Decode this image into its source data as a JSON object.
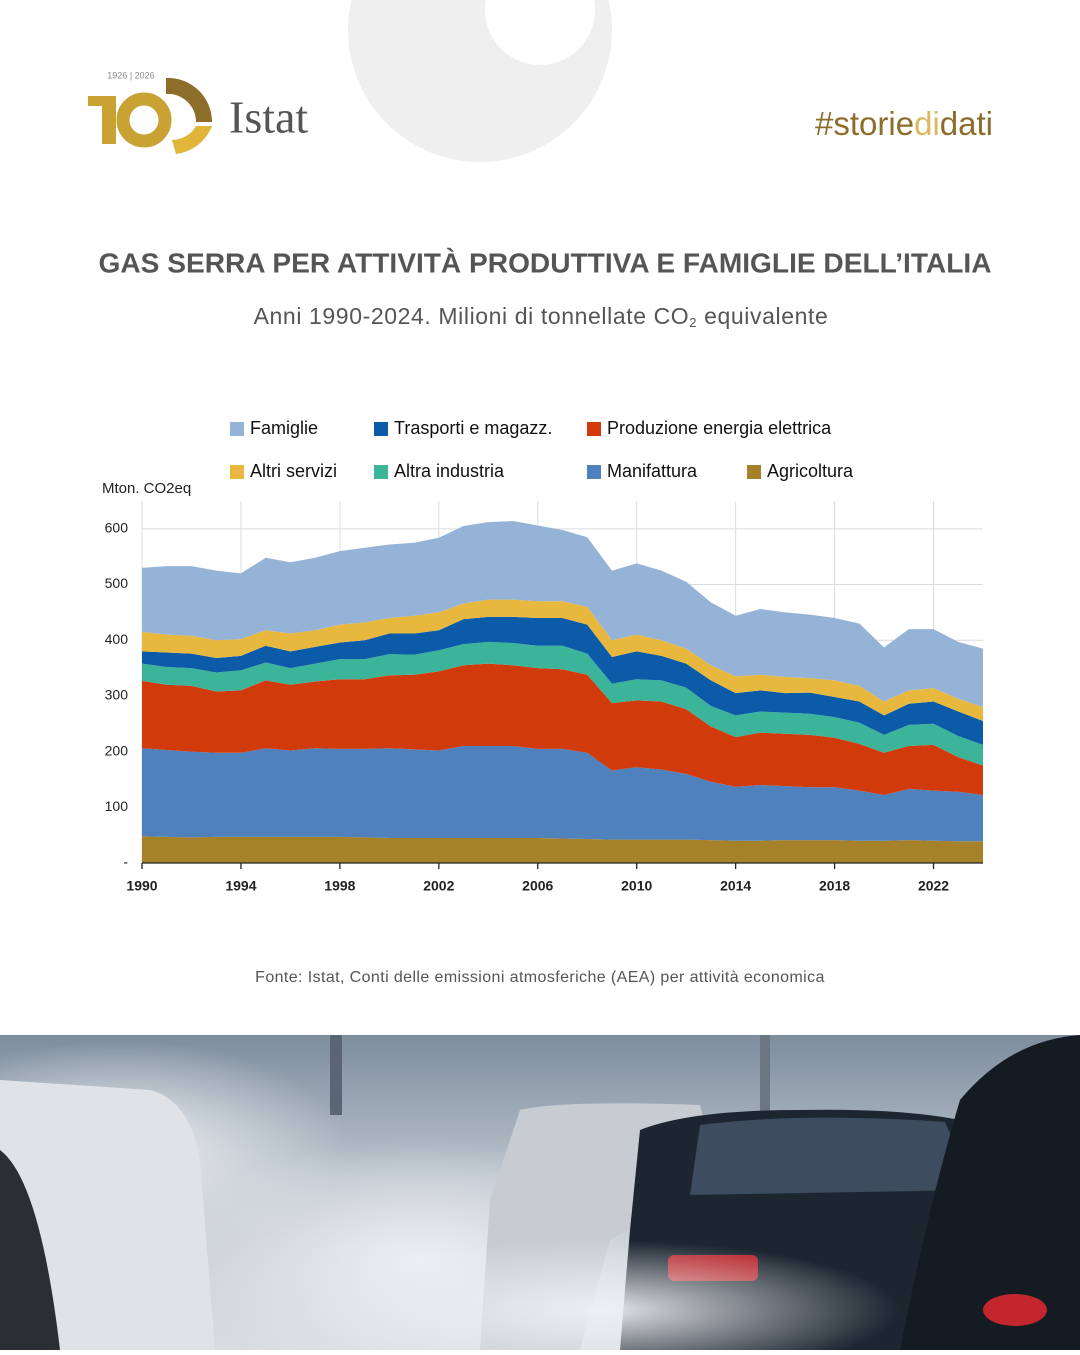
{
  "header": {
    "logo_years": "1926 | 2026",
    "logo_name": "Istat",
    "hashtag_parts": [
      "#storie",
      "di",
      "dati"
    ]
  },
  "chart_data": {
    "type": "stacked-area",
    "title": "GAS SERRA PER ATTIVITÀ PRODUTTIVA E FAMIGLIE DELL’ITALIA",
    "subtitle_parts": [
      "Anni 1990-2024. Milioni di tonnellate CO",
      "2",
      " equivalente"
    ],
    "y_axis_label": "Mton. CO2eq",
    "x": [
      1990,
      1991,
      1992,
      1993,
      1994,
      1995,
      1996,
      1997,
      1998,
      1999,
      2000,
      2001,
      2002,
      2003,
      2004,
      2005,
      2006,
      2007,
      2008,
      2009,
      2010,
      2011,
      2012,
      2013,
      2014,
      2015,
      2016,
      2017,
      2018,
      2019,
      2020,
      2021,
      2022,
      2023,
      2024
    ],
    "xlim": [
      1990,
      2024
    ],
    "xticks": [
      1990,
      1994,
      1998,
      2002,
      2006,
      2010,
      2014,
      2018,
      2022
    ],
    "ylim": [
      0,
      650
    ],
    "yticks": [
      {
        "value": 0,
        "label": "-"
      },
      100,
      200,
      300,
      400,
      500,
      600
    ],
    "grid": true,
    "series": [
      {
        "name": "Famiglie",
        "color": "#95b3d7",
        "values": [
          115,
          123,
          125,
          125,
          118,
          130,
          128,
          130,
          132,
          134,
          132,
          131,
          134,
          139,
          139,
          141,
          136,
          128,
          125,
          125,
          128,
          125,
          120,
          113,
          109,
          118,
          116,
          114,
          112,
          112,
          97,
          110,
          106,
          102,
          105
        ]
      },
      {
        "name": "Trasporti e magazz.",
        "color": "#0b5ba8",
        "values": [
          22,
          26,
          26,
          26,
          26,
          30,
          30,
          30,
          30,
          34,
          37,
          38,
          36,
          45,
          45,
          47,
          50,
          50,
          52,
          48,
          50,
          44,
          43,
          46,
          40,
          38,
          35,
          38,
          36,
          38,
          35,
          38,
          40,
          44,
          43
        ]
      },
      {
        "name": "Produzione energia elettrica",
        "color": "#d13a0a",
        "values": [
          121,
          117,
          118,
          110,
          112,
          122,
          118,
          120,
          125,
          125,
          131,
          134,
          142,
          145,
          148,
          145,
          145,
          143,
          140,
          121,
          120,
          122,
          116,
          99,
          89,
          94,
          94,
          94,
          89,
          84,
          76,
          77,
          82,
          62,
          53
        ]
      },
      {
        "name": "Altri servizi",
        "color": "#e8b83e",
        "values": [
          35,
          32,
          32,
          32,
          30,
          28,
          32,
          30,
          32,
          32,
          28,
          32,
          32,
          28,
          31,
          31,
          30,
          30,
          32,
          30,
          30,
          28,
          27,
          27,
          30,
          28,
          29,
          26,
          30,
          28,
          25,
          24,
          24,
          23,
          25
        ]
      },
      {
        "name": "Altra industria",
        "color": "#3cb49a",
        "values": [
          31,
          32,
          32,
          34,
          36,
          32,
          30,
          32,
          36,
          36,
          38,
          36,
          38,
          38,
          39,
          40,
          40,
          42,
          38,
          35,
          38,
          38,
          39,
          37,
          39,
          38,
          38,
          38,
          37,
          38,
          32,
          38,
          38,
          38,
          37
        ]
      },
      {
        "name": "Manifattura",
        "color": "#4f81bd",
        "values": [
          158,
          156,
          154,
          151,
          151,
          159,
          155,
          159,
          158,
          159,
          161,
          159,
          157,
          165,
          165,
          165,
          160,
          161,
          155,
          124,
          130,
          126,
          118,
          105,
          97,
          100,
          97,
          95,
          95,
          90,
          82,
          92,
          90,
          89,
          83
        ]
      },
      {
        "name": "Agricoltura",
        "color": "#a5822a",
        "values": [
          48,
          47,
          46,
          47,
          47,
          47,
          47,
          47,
          47,
          46,
          45,
          45,
          45,
          45,
          45,
          45,
          45,
          44,
          43,
          42,
          42,
          42,
          42,
          41,
          40,
          40,
          41,
          41,
          41,
          40,
          40,
          41,
          40,
          39,
          39
        ]
      }
    ],
    "source": "Fonte: Istat, Conti delle emissioni atmosferiche (AEA) per attività economica"
  }
}
